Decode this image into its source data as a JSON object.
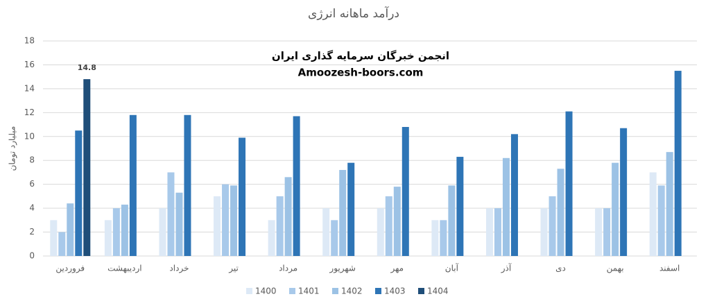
{
  "chart_data": {
    "type": "bar",
    "title": "درآمد ماهانه انرژی",
    "y_label": "میلیارد تومان",
    "annotations": [
      "انجمن خبرگان سرمایه گذاری ایران",
      "Amoozesh-boors.com"
    ],
    "categories": [
      "فروردین",
      "اردیبهشت",
      "خرداد",
      "تیر",
      "مرداد",
      "شهریور",
      "مهر",
      "آبان",
      "آذر",
      "دی",
      "بهمن",
      "اسفند"
    ],
    "series": [
      {
        "name": "1400",
        "color": "#dde9f6",
        "values": [
          3,
          3,
          4,
          5,
          3,
          4,
          4,
          3,
          4,
          4,
          4,
          7
        ]
      },
      {
        "name": "1401",
        "color": "#a8c9ea",
        "values": [
          2,
          4,
          7,
          6,
          5,
          3,
          5,
          3,
          4,
          5,
          4,
          5.9
        ]
      },
      {
        "name": "1402",
        "color": "#9cc2e5",
        "values": [
          4.4,
          4.3,
          5.3,
          5.9,
          6.6,
          7.2,
          5.8,
          5.9,
          8.2,
          7.3,
          7.8,
          8.7
        ]
      },
      {
        "name": "1403",
        "color": "#2e75b6",
        "values": [
          10.5,
          11.8,
          11.8,
          9.9,
          11.7,
          7.8,
          10.8,
          8.3,
          10.2,
          12.1,
          10.7,
          15.5
        ]
      },
      {
        "name": "1404",
        "color": "#1f4e79",
        "data_labels": true,
        "values": [
          14.8,
          null,
          null,
          null,
          null,
          null,
          null,
          null,
          null,
          null,
          null,
          null
        ]
      }
    ],
    "ylim": [
      0,
      18
    ],
    "yticks": [
      0,
      2,
      4,
      6,
      8,
      10,
      12,
      14,
      16,
      18
    ],
    "grid": true,
    "legend": "bottom"
  }
}
